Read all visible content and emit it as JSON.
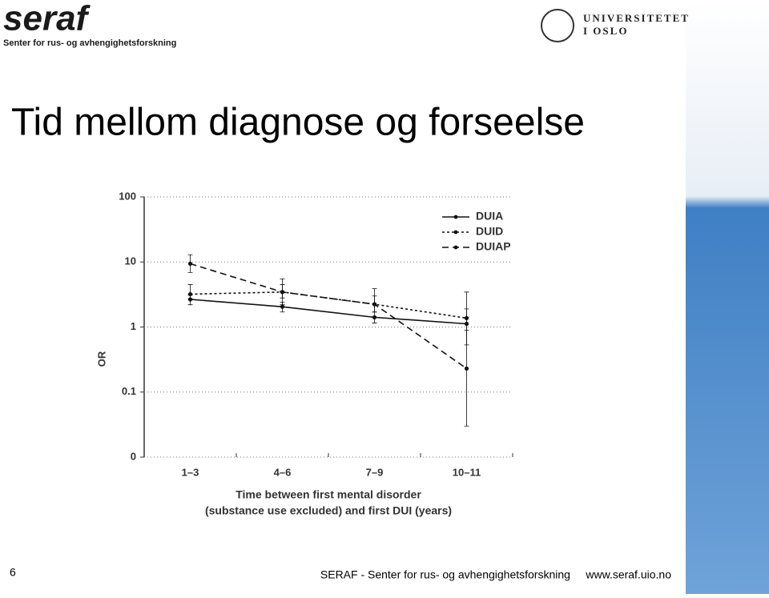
{
  "header": {
    "logo": "seraf",
    "logo_subtitle": "Senter for rus- og avhengighetsforskning",
    "university": [
      "UNIVERSITETET",
      "I OSLO"
    ]
  },
  "title": "Tid mellom diagnose og forseelse",
  "chart_data": {
    "type": "line",
    "categories": [
      "1–3",
      "4–6",
      "7–9",
      "10–11"
    ],
    "ylabel": "OR",
    "xlabel": [
      "Time between first mental disorder",
      "(substance use excluded) and first DUI (years)"
    ],
    "log_y": true,
    "ylim": [
      0.01,
      100
    ],
    "yticks": [
      {
        "value": 0.01,
        "label": "0"
      },
      0.1,
      1,
      10,
      100
    ],
    "grid": true,
    "legend": "top-right",
    "series": [
      {
        "name": "DUIA",
        "color": "#111111",
        "dash": "solid",
        "values": [
          2.66,
          2.05,
          1.41,
          1.12
        ],
        "ci_low": [
          2.2,
          1.7,
          1.15,
          0.89
        ],
        "ci_high": [
          3.1,
          2.4,
          1.7,
          1.4
        ]
      },
      {
        "name": "DUID",
        "color": "#111111",
        "dash": "dotted",
        "values": [
          3.2,
          3.45,
          2.24,
          1.37
        ],
        "ci_low": [
          2.7,
          2.8,
          1.7,
          0.53
        ],
        "ci_high": [
          4.5,
          4.5,
          3.0,
          1.9
        ]
      },
      {
        "name": "DUIAP",
        "color": "#111111",
        "dash": "dashed",
        "values": [
          9.4,
          3.45,
          2.24,
          0.23
        ],
        "ci_low": [
          6.9,
          2.2,
          1.7,
          0.03
        ],
        "ci_high": [
          12.9,
          5.5,
          3.9,
          3.45
        ]
      }
    ]
  },
  "footer": {
    "page": "6",
    "text": "SERAF - Senter for rus- og avhengighetsforskning     www.seraf.uio.no"
  }
}
